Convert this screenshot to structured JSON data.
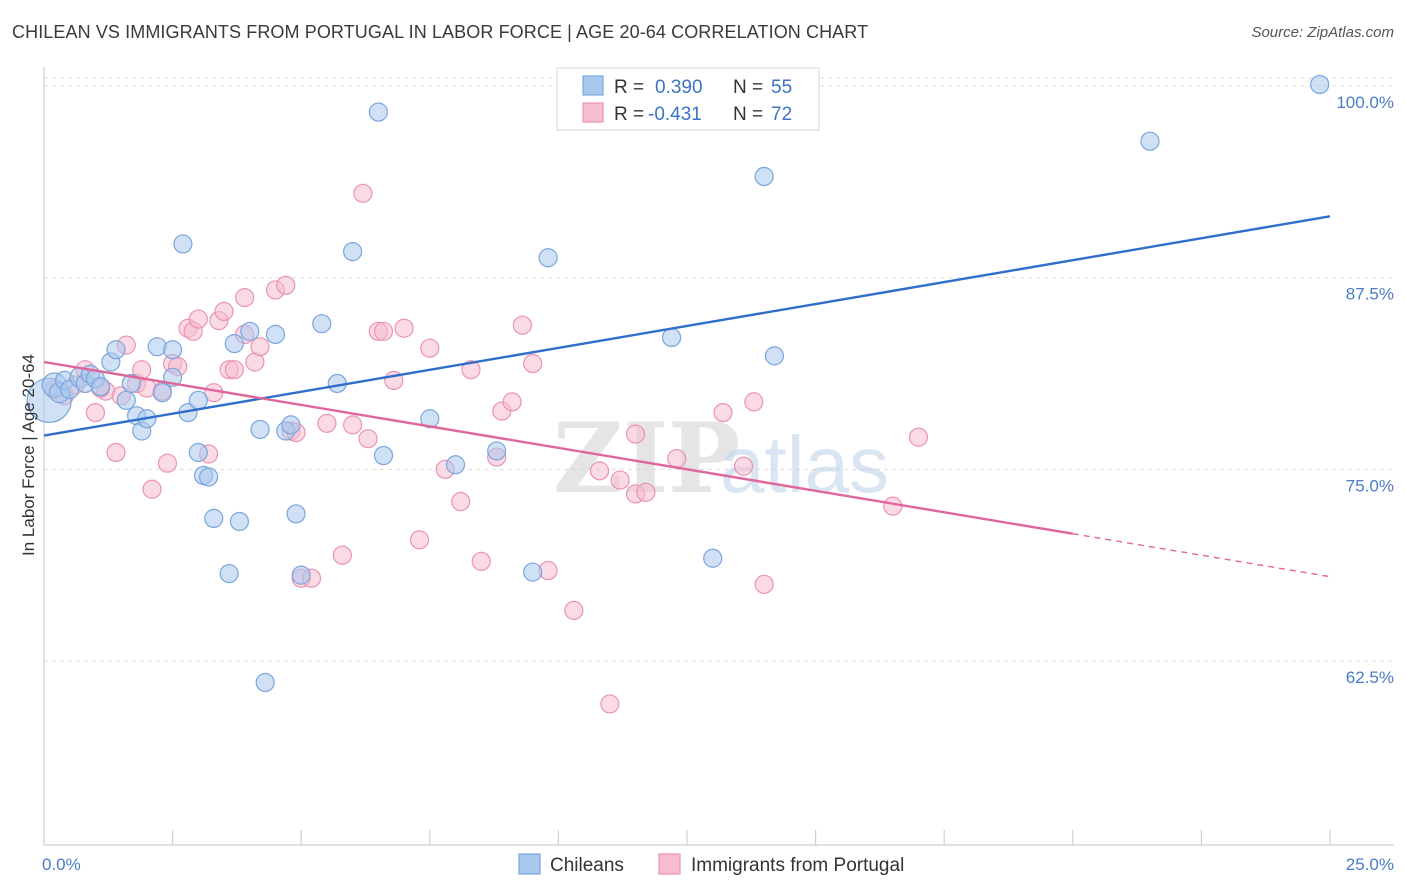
{
  "title": "CHILEAN VS IMMIGRANTS FROM PORTUGAL IN LABOR FORCE | AGE 20-64 CORRELATION CHART",
  "source": "Source: ZipAtlas.com",
  "watermark": {
    "part1": "ZIP",
    "part2": "atlas"
  },
  "colors": {
    "chileans_fill": "#a9c8ee",
    "chileans_stroke": "#7aa6dd",
    "chileans_line": "#2f6fcb",
    "portugal_fill": "#f6bcd0",
    "portugal_stroke": "#ea93b2",
    "portugal_line": "#e0669a",
    "axis_label": "#4a7cc6",
    "grid": "#dcdcdc"
  },
  "legend": {
    "rows": [
      {
        "r_label": "R =",
        "r_value": "0.390",
        "n_label": "N =",
        "n_value": "55"
      },
      {
        "r_label": "R =",
        "r_value": "-0.431",
        "n_label": "N =",
        "n_value": "72"
      }
    ]
  },
  "chart_data": {
    "type": "scatter",
    "xlabel": "",
    "ylabel": "In Labor Force | Age 20-64",
    "xlim": [
      0,
      25
    ],
    "ylim": [
      50.5,
      101.5
    ],
    "x_tick_labels": [
      {
        "value": 0,
        "label": "0.0%"
      },
      {
        "value": 25,
        "label": "25.0%"
      }
    ],
    "y_ticks": [
      {
        "value": 62.5,
        "label": "62.5%"
      },
      {
        "value": 75.0,
        "label": "75.0%"
      },
      {
        "value": 87.5,
        "label": "87.5%"
      },
      {
        "value": 100.0,
        "label": "100.0%"
      }
    ],
    "x_minor_ticks": [
      2.5,
      5,
      7.5,
      10,
      12.5,
      15,
      17.5,
      20,
      22.5,
      25
    ],
    "grid": true,
    "series": [
      {
        "name": "Chileans",
        "trend": {
          "x": [
            0,
            25
          ],
          "y": [
            77.2,
            91.5
          ],
          "solid_until": 25
        },
        "points": [
          [
            0.1,
            79.5,
            22
          ],
          [
            0.2,
            80.5,
            12
          ],
          [
            0.3,
            80.0,
            10
          ],
          [
            0.4,
            80.8,
            9
          ],
          [
            0.5,
            80.2,
            9
          ],
          [
            0.7,
            81.0,
            10
          ],
          [
            0.8,
            80.6,
            9
          ],
          [
            0.9,
            81.2,
            9
          ],
          [
            1.0,
            80.9,
            9
          ],
          [
            1.1,
            80.4,
            9
          ],
          [
            1.3,
            82.0,
            9
          ],
          [
            1.4,
            82.8,
            9
          ],
          [
            1.6,
            79.5,
            9
          ],
          [
            1.7,
            80.6,
            9
          ],
          [
            1.8,
            78.5,
            9
          ],
          [
            1.9,
            77.5,
            9
          ],
          [
            2.0,
            78.3,
            9
          ],
          [
            2.2,
            83.0,
            9
          ],
          [
            2.3,
            80.0,
            9
          ],
          [
            2.5,
            81.0,
            9
          ],
          [
            2.5,
            82.8,
            9
          ],
          [
            2.7,
            89.7,
            9
          ],
          [
            2.8,
            78.7,
            9
          ],
          [
            3.0,
            79.5,
            9
          ],
          [
            3.0,
            76.1,
            9
          ],
          [
            3.1,
            74.6,
            9
          ],
          [
            3.2,
            74.5,
            9
          ],
          [
            3.3,
            71.8,
            9
          ],
          [
            3.6,
            68.2,
            9
          ],
          [
            3.7,
            83.2,
            9
          ],
          [
            3.8,
            71.6,
            9
          ],
          [
            4.0,
            84.0,
            9
          ],
          [
            4.2,
            77.6,
            9
          ],
          [
            4.3,
            61.1,
            9
          ],
          [
            4.5,
            83.8,
            9
          ],
          [
            4.7,
            77.5,
            9
          ],
          [
            4.8,
            77.9,
            9
          ],
          [
            4.9,
            72.1,
            9
          ],
          [
            5.0,
            68.1,
            9
          ],
          [
            5.4,
            84.5,
            9
          ],
          [
            5.7,
            80.6,
            9
          ],
          [
            6.0,
            89.2,
            9
          ],
          [
            6.5,
            98.3,
            9
          ],
          [
            6.6,
            75.9,
            9
          ],
          [
            7.5,
            78.3,
            9
          ],
          [
            8.0,
            75.3,
            9
          ],
          [
            8.8,
            76.2,
            9
          ],
          [
            9.5,
            68.3,
            9
          ],
          [
            9.8,
            88.8,
            9
          ],
          [
            12.2,
            83.6,
            9
          ],
          [
            13.0,
            69.2,
            9
          ],
          [
            14.0,
            94.1,
            9
          ],
          [
            14.2,
            82.4,
            9
          ],
          [
            21.5,
            96.4,
            9
          ],
          [
            24.8,
            100.1,
            9
          ]
        ]
      },
      {
        "name": "Immigrants from Portugal",
        "trend": {
          "x": [
            0,
            25
          ],
          "y": [
            82.0,
            68.0
          ],
          "solid_until": 20.0
        },
        "points": [
          [
            0.2,
            80.2,
            9
          ],
          [
            0.4,
            79.8,
            9
          ],
          [
            0.6,
            80.5,
            9
          ],
          [
            0.8,
            81.5,
            9
          ],
          [
            1.0,
            78.7,
            9
          ],
          [
            1.2,
            80.1,
            9
          ],
          [
            1.4,
            76.1,
            9
          ],
          [
            1.5,
            79.8,
            9
          ],
          [
            1.6,
            83.1,
            9
          ],
          [
            1.8,
            80.6,
            9
          ],
          [
            1.9,
            81.5,
            9
          ],
          [
            2.0,
            80.3,
            9
          ],
          [
            2.1,
            73.7,
            9
          ],
          [
            2.3,
            80.1,
            9
          ],
          [
            2.4,
            75.4,
            9
          ],
          [
            2.5,
            81.9,
            9
          ],
          [
            2.6,
            81.7,
            9
          ],
          [
            2.8,
            84.2,
            9
          ],
          [
            2.9,
            84.0,
            9
          ],
          [
            3.0,
            84.8,
            9
          ],
          [
            3.2,
            76.0,
            9
          ],
          [
            3.3,
            80.0,
            9
          ],
          [
            3.4,
            84.7,
            9
          ],
          [
            3.5,
            85.3,
            9
          ],
          [
            3.6,
            81.5,
            9
          ],
          [
            3.7,
            81.5,
            9
          ],
          [
            3.9,
            83.8,
            9
          ],
          [
            3.9,
            86.2,
            9
          ],
          [
            4.1,
            82.0,
            9
          ],
          [
            4.2,
            83.0,
            9
          ],
          [
            4.5,
            86.7,
            9
          ],
          [
            4.7,
            87.0,
            9
          ],
          [
            4.8,
            77.5,
            9
          ],
          [
            4.9,
            77.4,
            9
          ],
          [
            5.0,
            67.9,
            9
          ],
          [
            5.2,
            67.9,
            9
          ],
          [
            5.5,
            78.0,
            9
          ],
          [
            5.8,
            69.4,
            9
          ],
          [
            6.0,
            77.9,
            9
          ],
          [
            6.2,
            93.0,
            9
          ],
          [
            6.3,
            77.0,
            9
          ],
          [
            6.5,
            84.0,
            9
          ],
          [
            6.6,
            84.0,
            9
          ],
          [
            6.8,
            80.8,
            9
          ],
          [
            7.0,
            84.2,
            9
          ],
          [
            7.3,
            70.4,
            9
          ],
          [
            7.5,
            82.9,
            9
          ],
          [
            7.8,
            75.0,
            9
          ],
          [
            8.1,
            72.9,
            9
          ],
          [
            8.3,
            81.5,
            9
          ],
          [
            8.5,
            69.0,
            9
          ],
          [
            8.8,
            75.8,
            9
          ],
          [
            8.9,
            78.8,
            9
          ],
          [
            9.1,
            79.4,
            9
          ],
          [
            9.3,
            84.4,
            9
          ],
          [
            9.5,
            81.9,
            9
          ],
          [
            9.8,
            68.4,
            9
          ],
          [
            10.3,
            65.8,
            9
          ],
          [
            10.8,
            74.9,
            9
          ],
          [
            11.0,
            59.7,
            9
          ],
          [
            11.2,
            74.3,
            9
          ],
          [
            11.5,
            73.4,
            9
          ],
          [
            11.5,
            77.3,
            9
          ],
          [
            11.7,
            73.5,
            9
          ],
          [
            12.3,
            75.7,
            9
          ],
          [
            13.2,
            78.7,
            9
          ],
          [
            13.6,
            75.2,
            9
          ],
          [
            13.8,
            79.4,
            9
          ],
          [
            14.0,
            67.5,
            9
          ],
          [
            16.5,
            72.6,
            9
          ],
          [
            17.0,
            77.1,
            9
          ],
          [
            1.1,
            80.3,
            9
          ]
        ]
      }
    ],
    "legend_position": "top-center"
  }
}
